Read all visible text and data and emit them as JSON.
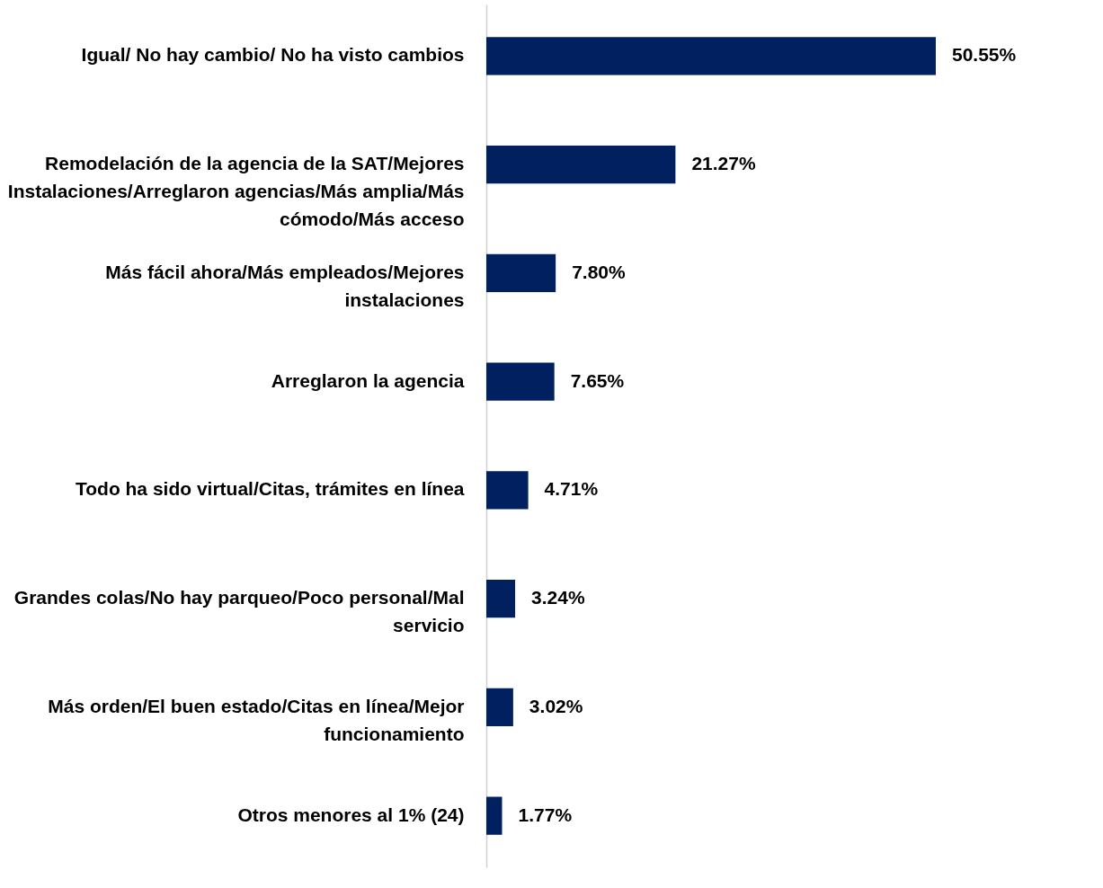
{
  "chart_data": {
    "type": "bar",
    "orientation": "horizontal",
    "categories": [
      "Igual/ No hay cambio/ No ha visto cambios",
      "Remodelación de la agencia de la SAT/Mejores Instalaciones/Arreglaron agencias/Más amplia/Más cómodo/Más acceso",
      "Más fácil ahora/Más empleados/Mejores instalaciones",
      "Arreglaron la agencia",
      "Todo ha sido virtual/Citas, trámites en línea",
      "Grandes colas/No hay parqueo/Poco personal/Mal servicio",
      "Más orden/El buen estado/Citas en línea/Mejor funcionamiento",
      "Otros menores al 1%  (24)"
    ],
    "values": [
      50.55,
      21.27,
      7.8,
      7.65,
      4.71,
      3.24,
      3.02,
      1.77
    ],
    "value_labels": [
      "50.55%",
      "21.27%",
      "7.80%",
      "7.65%",
      "4.71%",
      "3.24%",
      "3.02%",
      "1.77%"
    ],
    "color": "#002060",
    "grid": false
  }
}
